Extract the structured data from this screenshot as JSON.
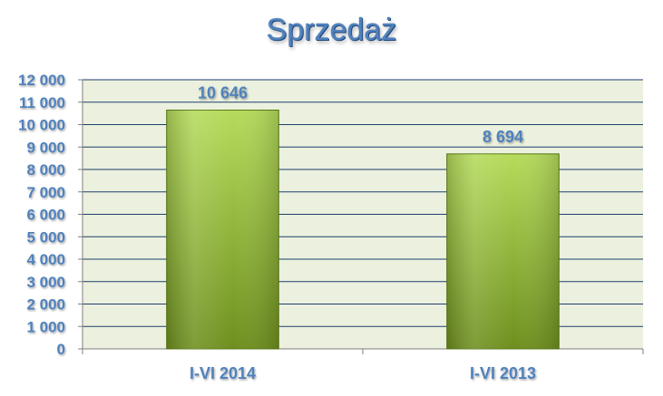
{
  "chart_data": {
    "type": "bar",
    "title": "Sprzedaż",
    "categories": [
      "I-VI 2014",
      "I-VI 2013"
    ],
    "values": [
      10646,
      8694
    ],
    "value_labels": [
      "10 646",
      "8 694"
    ],
    "ylim": [
      0,
      12000
    ],
    "yticks": [
      0,
      1000,
      2000,
      3000,
      4000,
      5000,
      6000,
      7000,
      8000,
      9000,
      10000,
      11000,
      12000
    ],
    "ytick_labels": [
      "0",
      "1 000",
      "2 000",
      "3 000",
      "4 000",
      "5 000",
      "6 000",
      "7 000",
      "8 000",
      "9 000",
      "10 000",
      "11 000",
      "12 000"
    ],
    "grid": true,
    "legend": "none",
    "colors": {
      "plot_background": "#ebf1de",
      "bar_light": "#b5db5b",
      "bar_dark": "#6e8f1e",
      "gridline": "#1f3f6f",
      "label_text": "#4f81bd",
      "title_text": "#4f81bd"
    }
  }
}
